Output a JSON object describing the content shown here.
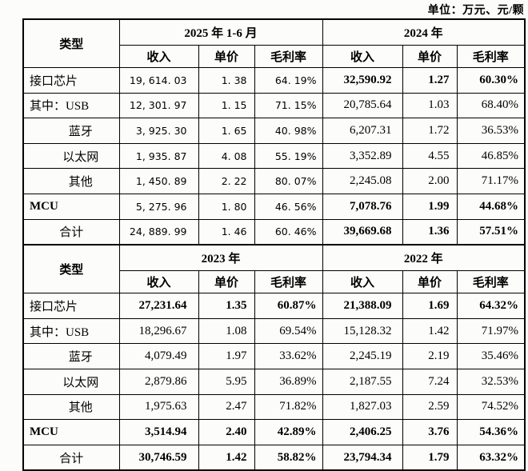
{
  "unit_label": "单位：万元、元/颗",
  "tables": [
    {
      "type_header": "类型",
      "period_headers": [
        "2025 年 1-6 月",
        "2024 年"
      ],
      "metric_headers": [
        "收入",
        "单价",
        "毛利率",
        "收入",
        "单价",
        "毛利率"
      ],
      "rows": [
        {
          "label": "接口芯片",
          "indent": "left",
          "label_bold": false,
          "cells": [
            "19, 614. 03",
            "1. 38",
            "64. 19%",
            "32,590.92",
            "1.27",
            "60.30%"
          ],
          "bold": [
            false,
            false,
            false,
            true,
            true,
            true
          ]
        },
        {
          "label": "其中：USB",
          "indent": "left",
          "label_bold": false,
          "cells": [
            "12, 301. 97",
            "1. 15",
            "71. 15%",
            "20,785.64",
            "1.03",
            "68.40%"
          ],
          "bold": [
            false,
            false,
            false,
            false,
            false,
            false
          ]
        },
        {
          "label": "蓝牙",
          "indent": "indent",
          "label_bold": false,
          "cells": [
            "3, 925. 30",
            "1. 65",
            "40. 98%",
            "6,207.31",
            "1.72",
            "36.53%"
          ],
          "bold": [
            false,
            false,
            false,
            false,
            false,
            false
          ]
        },
        {
          "label": "以太网",
          "indent": "indent",
          "label_bold": false,
          "cells": [
            "1, 935. 87",
            "4. 08",
            "55. 19%",
            "3,352.89",
            "4.55",
            "46.85%"
          ],
          "bold": [
            false,
            false,
            false,
            false,
            false,
            false
          ]
        },
        {
          "label": "其他",
          "indent": "indent",
          "label_bold": false,
          "cells": [
            "1, 450. 89",
            "2. 22",
            "80. 07%",
            "2,245.08",
            "2.00",
            "71.17%"
          ],
          "bold": [
            false,
            false,
            false,
            false,
            false,
            false
          ]
        },
        {
          "label": "MCU",
          "indent": "left",
          "label_bold": true,
          "cells": [
            "5, 275. 96",
            "1. 80",
            "46. 56%",
            "7,078.76",
            "1.99",
            "44.68%"
          ],
          "bold": [
            false,
            false,
            false,
            true,
            true,
            true
          ]
        },
        {
          "label": "合计",
          "indent": "center",
          "label_bold": false,
          "cells": [
            "24, 889. 99",
            "1. 46",
            "60. 46%",
            "39,669.68",
            "1.36",
            "57.51%"
          ],
          "bold": [
            false,
            false,
            false,
            true,
            true,
            true
          ]
        }
      ]
    },
    {
      "type_header": "类型",
      "period_headers": [
        "2023 年",
        "2022 年"
      ],
      "metric_headers": [
        "收入",
        "单价",
        "毛利率",
        "收入",
        "单价",
        "毛利率"
      ],
      "rows": [
        {
          "label": "接口芯片",
          "indent": "left",
          "label_bold": false,
          "cells": [
            "27,231.64",
            "1.35",
            "60.87%",
            "21,388.09",
            "1.69",
            "64.32%"
          ],
          "bold": [
            true,
            true,
            true,
            true,
            true,
            true
          ]
        },
        {
          "label": "其中：USB",
          "indent": "left",
          "label_bold": false,
          "cells": [
            "18,296.67",
            "1.08",
            "69.54%",
            "15,128.32",
            "1.42",
            "71.97%"
          ],
          "bold": [
            false,
            false,
            false,
            false,
            false,
            false
          ]
        },
        {
          "label": "蓝牙",
          "indent": "indent",
          "label_bold": false,
          "cells": [
            "4,079.49",
            "1.97",
            "33.62%",
            "2,245.19",
            "2.19",
            "35.46%"
          ],
          "bold": [
            false,
            false,
            false,
            false,
            false,
            false
          ]
        },
        {
          "label": "以太网",
          "indent": "indent",
          "label_bold": false,
          "cells": [
            "2,879.86",
            "5.95",
            "36.89%",
            "2,187.55",
            "7.24",
            "32.53%"
          ],
          "bold": [
            false,
            false,
            false,
            false,
            false,
            false
          ]
        },
        {
          "label": "其他",
          "indent": "indent",
          "label_bold": false,
          "cells": [
            "1,975.63",
            "2.47",
            "71.82%",
            "1,827.03",
            "2.59",
            "74.52%"
          ],
          "bold": [
            false,
            false,
            false,
            false,
            false,
            false
          ]
        },
        {
          "label": "MCU",
          "indent": "left",
          "label_bold": true,
          "cells": [
            "3,514.94",
            "2.40",
            "42.89%",
            "2,406.25",
            "3.76",
            "54.36%"
          ],
          "bold": [
            true,
            true,
            true,
            true,
            true,
            true
          ]
        },
        {
          "label": "合计",
          "indent": "center",
          "label_bold": false,
          "cells": [
            "30,746.59",
            "1.42",
            "58.82%",
            "23,794.34",
            "1.79",
            "63.32%"
          ],
          "bold": [
            true,
            true,
            true,
            true,
            true,
            true
          ]
        }
      ]
    }
  ]
}
